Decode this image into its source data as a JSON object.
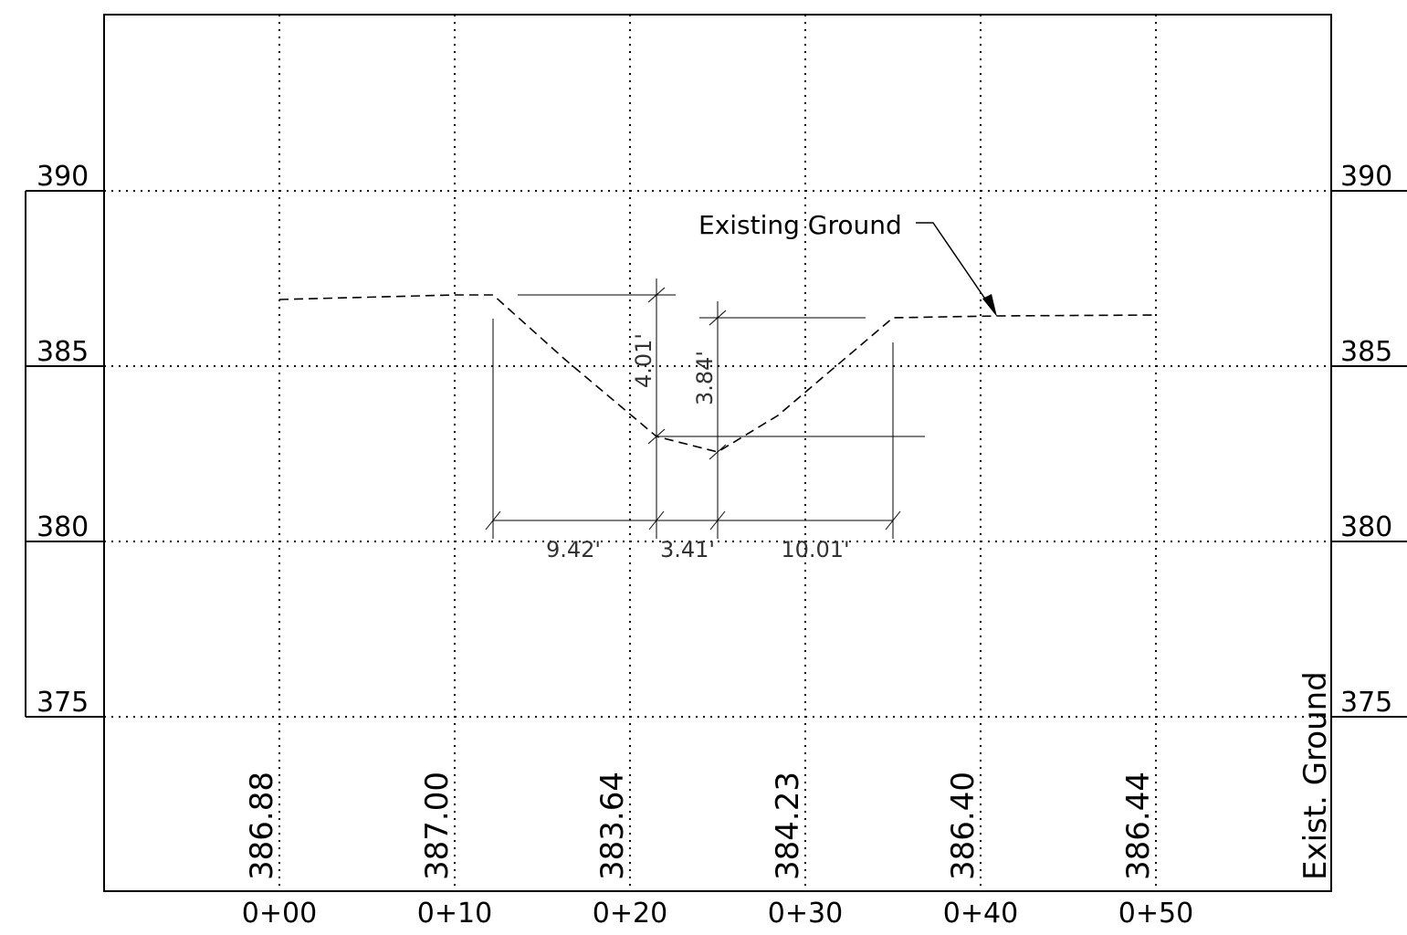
{
  "elevations": [
    "390",
    "385",
    "380",
    "375"
  ],
  "stations": [
    "0+00",
    "0+10",
    "0+20",
    "0+30",
    "0+40",
    "0+50"
  ],
  "ground_values": [
    "386.88",
    "387.00",
    "383.64",
    "384.23",
    "386.40",
    "386.44"
  ],
  "row_label": "Exist. Ground",
  "callout": "Existing Ground",
  "dimensions": {
    "h1": "9.42'",
    "h2": "3.41'",
    "h3": "10.01'",
    "v1": "4.01'",
    "v2": "3.84'"
  }
}
